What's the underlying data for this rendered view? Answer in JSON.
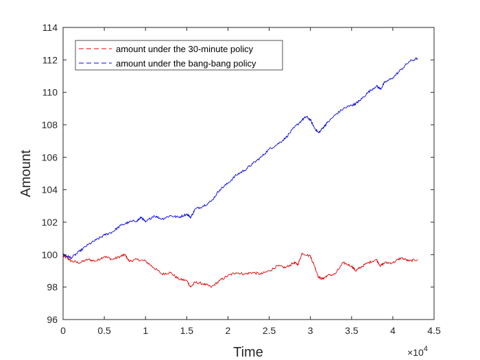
{
  "chart_data": {
    "type": "line",
    "title": "",
    "xlabel": "Time",
    "ylabel": "Amount",
    "x_exponent_label": "×10",
    "x_exponent_power": "4",
    "xlim": [
      0,
      45000
    ],
    "ylim": [
      96,
      114
    ],
    "x_ticks": [
      0,
      5000,
      10000,
      15000,
      20000,
      25000,
      30000,
      35000,
      40000,
      45000
    ],
    "x_tick_labels": [
      "0",
      "0.5",
      "1",
      "1.5",
      "2",
      "2.5",
      "3",
      "3.5",
      "4",
      "4.5"
    ],
    "y_ticks": [
      96,
      98,
      100,
      102,
      104,
      106,
      108,
      110,
      112,
      114
    ],
    "y_tick_labels": [
      "96",
      "98",
      "100",
      "102",
      "104",
      "106",
      "108",
      "110",
      "112",
      "114"
    ],
    "grid": false,
    "legend_position": "top-left",
    "series": [
      {
        "name": "amount under the 30-minute policy",
        "color": "#e00000",
        "x": [
          0,
          500,
          1000,
          2000,
          3000,
          4000,
          5000,
          6000,
          7000,
          7500,
          8000,
          9000,
          10000,
          11000,
          12000,
          13000,
          14000,
          15000,
          15500,
          16000,
          17000,
          18000,
          19000,
          20000,
          21000,
          22000,
          23000,
          24000,
          25000,
          26000,
          27000,
          28000,
          28500,
          29000,
          30000,
          30500,
          31000,
          31500,
          32000,
          33000,
          34000,
          35000,
          35500,
          36000,
          37000,
          38000,
          38500,
          39000,
          40000,
          41000,
          42000,
          43000
        ],
        "y": [
          99.9,
          99.8,
          99.6,
          99.5,
          99.7,
          99.6,
          99.9,
          99.7,
          99.9,
          100.0,
          99.6,
          99.7,
          99.6,
          99.2,
          98.8,
          98.9,
          98.5,
          98.4,
          98.0,
          98.3,
          98.2,
          98.0,
          98.4,
          98.7,
          98.9,
          98.8,
          98.9,
          98.8,
          99.0,
          99.3,
          99.2,
          99.5,
          99.4,
          100.1,
          99.9,
          99.3,
          98.6,
          98.5,
          98.7,
          98.8,
          99.5,
          99.3,
          99.0,
          99.2,
          99.5,
          99.7,
          99.3,
          99.5,
          99.5,
          99.8,
          99.6,
          99.7
        ]
      },
      {
        "name": "amount under the bang-bang policy",
        "color": "#0000e0",
        "x": [
          0,
          500,
          1000,
          2000,
          3000,
          4000,
          5000,
          6000,
          7000,
          8000,
          9000,
          9500,
          10000,
          11000,
          12000,
          13000,
          14000,
          15000,
          15500,
          16000,
          17000,
          18000,
          19000,
          20000,
          21000,
          22000,
          23000,
          24000,
          25000,
          26000,
          27000,
          28000,
          29000,
          29500,
          30000,
          30500,
          31000,
          31500,
          32000,
          33000,
          34000,
          35000,
          35500,
          36000,
          37000,
          38000,
          38500,
          39000,
          40000,
          41000,
          42000,
          43000
        ],
        "y": [
          100.0,
          99.9,
          99.8,
          100.2,
          100.6,
          100.9,
          101.2,
          101.4,
          101.8,
          102.0,
          102.1,
          102.3,
          102.0,
          102.4,
          102.2,
          102.4,
          102.3,
          102.5,
          102.3,
          102.8,
          103.0,
          103.3,
          104.0,
          104.4,
          104.9,
          105.2,
          105.6,
          106.0,
          106.5,
          106.8,
          107.2,
          107.8,
          108.3,
          108.5,
          108.3,
          107.8,
          107.5,
          107.8,
          108.1,
          108.6,
          109.0,
          109.2,
          109.3,
          109.5,
          110.0,
          110.4,
          110.2,
          110.6,
          110.9,
          111.4,
          111.9,
          112.1
        ]
      }
    ]
  }
}
